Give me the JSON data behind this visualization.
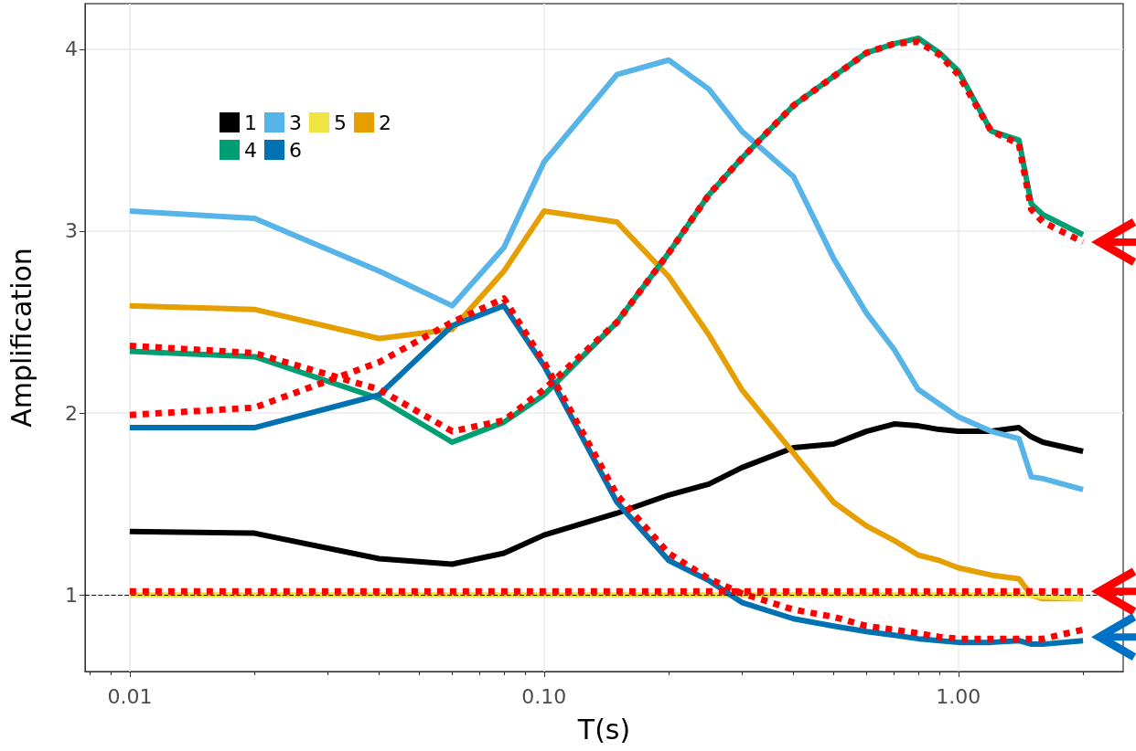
{
  "chart_data": {
    "type": "line",
    "xlabel": "T(s)",
    "ylabel": "Amplification",
    "log": "x",
    "x": [
      0.01,
      0.02,
      0.04,
      0.06,
      0.08,
      0.1,
      0.15,
      0.2,
      0.25,
      0.3,
      0.4,
      0.5,
      0.6,
      0.7,
      0.8,
      0.9,
      1.0,
      1.2,
      1.4,
      1.5,
      1.6,
      2.0
    ],
    "xlim": [
      0.0078,
      2.5
    ],
    "xticks": [
      {
        "value": 0.01,
        "label": "0.01"
      },
      {
        "value": 0.1,
        "label": "0.10"
      },
      {
        "value": 1,
        "label": "1.00"
      }
    ],
    "ylim": [
      0.58,
      4.25
    ],
    "yticks": [
      1,
      2,
      3,
      4
    ],
    "grid": true,
    "legend": "top left",
    "marker": "none",
    "ref_lines": [
      {
        "axis": "y",
        "value": 1,
        "color": "#000000",
        "line_style": "dashed"
      }
    ],
    "series": [
      {
        "name": "1",
        "color": "#000000",
        "values": [
          1.35,
          1.34,
          1.2,
          1.17,
          1.23,
          1.33,
          1.45,
          1.55,
          1.61,
          1.7,
          1.81,
          1.83,
          1.9,
          1.94,
          1.93,
          1.91,
          1.9,
          1.9,
          1.92,
          1.87,
          1.84,
          1.79
        ]
      },
      {
        "name": "2",
        "color": "#e69f00",
        "values": [
          2.59,
          2.57,
          2.41,
          2.46,
          2.78,
          3.11,
          3.05,
          2.75,
          2.43,
          2.13,
          1.78,
          1.51,
          1.38,
          1.3,
          1.22,
          1.19,
          1.15,
          1.11,
          1.09,
          1.0,
          0.98,
          0.98
        ]
      },
      {
        "name": "3",
        "color": "#56b4e9",
        "values": [
          3.11,
          3.07,
          2.78,
          2.59,
          2.91,
          3.38,
          3.86,
          3.94,
          3.78,
          3.55,
          3.3,
          2.85,
          2.55,
          2.35,
          2.13,
          2.05,
          1.98,
          1.9,
          1.86,
          1.65,
          1.64,
          1.58
        ]
      },
      {
        "name": "4",
        "color": "#009e73",
        "values": [
          2.34,
          2.31,
          2.08,
          1.84,
          1.95,
          2.1,
          2.5,
          2.88,
          3.2,
          3.4,
          3.69,
          3.85,
          3.98,
          4.03,
          4.06,
          3.98,
          3.88,
          3.55,
          3.5,
          3.15,
          3.09,
          2.98
        ]
      },
      {
        "name": "5",
        "color": "#f0e442",
        "values": [
          1.0,
          1.0,
          1.0,
          1.0,
          1.0,
          1.0,
          1.0,
          1.0,
          1.0,
          1.0,
          1.0,
          1.0,
          1.0,
          1.0,
          1.0,
          1.0,
          1.0,
          1.0,
          1.0,
          1.0,
          0.99,
          0.98
        ]
      },
      {
        "name": "6",
        "color": "#0072b2",
        "values": [
          1.92,
          1.92,
          2.1,
          2.48,
          2.59,
          2.26,
          1.51,
          1.19,
          1.08,
          0.96,
          0.87,
          0.83,
          0.8,
          0.78,
          0.76,
          0.75,
          0.74,
          0.74,
          0.75,
          0.73,
          0.73,
          0.75
        ]
      },
      {
        "color": "#ff0000",
        "line_style": "dotted",
        "values": [
          2.37,
          2.33,
          2.13,
          1.9,
          1.96,
          2.13,
          2.5,
          2.88,
          3.2,
          3.4,
          3.69,
          3.85,
          3.98,
          4.03,
          4.04,
          3.97,
          3.86,
          3.55,
          3.48,
          3.12,
          3.05,
          2.94
        ]
      },
      {
        "color": "#ff0000",
        "line_style": "dotted",
        "values": [
          1.02,
          1.02,
          1.02,
          1.02,
          1.02,
          1.02,
          1.02,
          1.02,
          1.02,
          1.02,
          1.02,
          1.02,
          1.02,
          1.02,
          1.02,
          1.02,
          1.02,
          1.02,
          1.02,
          1.02,
          1.02,
          1.02
        ]
      },
      {
        "color": "#ff0000",
        "line_style": "dotted",
        "values": [
          1.99,
          2.03,
          2.28,
          2.5,
          2.63,
          2.28,
          1.55,
          1.23,
          1.09,
          1.01,
          0.92,
          0.88,
          0.83,
          0.81,
          0.79,
          0.77,
          0.76,
          0.76,
          0.76,
          0.76,
          0.76,
          0.81
        ]
      }
    ]
  }
}
